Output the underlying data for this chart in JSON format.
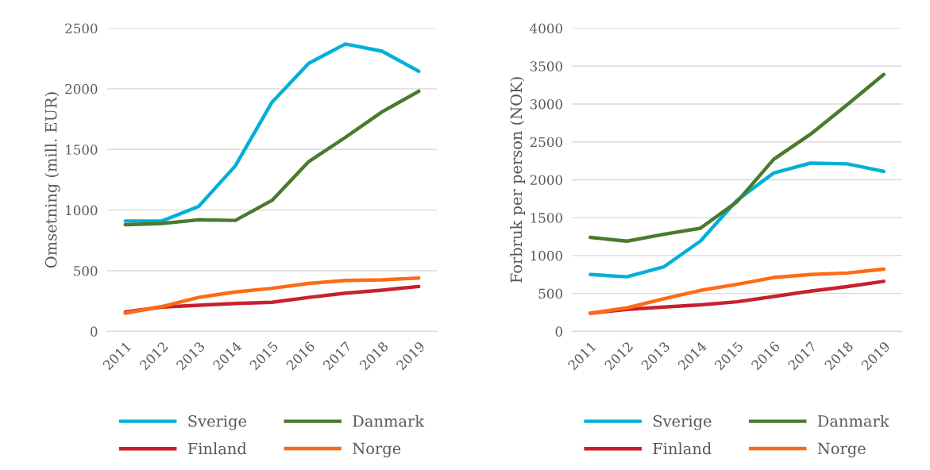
{
  "chart_data": [
    {
      "type": "line",
      "ylabel": "Omsetning (mill. EUR)",
      "categories": [
        "2011",
        "2012",
        "2013",
        "2014",
        "2015",
        "2016",
        "2017",
        "2018",
        "2019"
      ],
      "ylim": [
        0,
        2500
      ],
      "yticks": [
        0,
        500,
        1000,
        1500,
        2000,
        2500
      ],
      "grid": "y",
      "legend": "bottom",
      "series": [
        {
          "name": "Sverige",
          "color": "#00b0d8",
          "values": [
            910,
            910,
            1030,
            1365,
            1890,
            2210,
            2370,
            2310,
            2145
          ]
        },
        {
          "name": "Danmark",
          "color": "#4a7a2e",
          "values": [
            880,
            890,
            920,
            915,
            1080,
            1400,
            1600,
            1810,
            1980
          ]
        },
        {
          "name": "Finland",
          "color": "#c8202e",
          "values": [
            160,
            200,
            215,
            230,
            240,
            280,
            315,
            340,
            370
          ]
        },
        {
          "name": "Norge",
          "color": "#ff6a13",
          "values": [
            150,
            205,
            280,
            325,
            355,
            395,
            420,
            425,
            440
          ]
        }
      ]
    },
    {
      "type": "line",
      "ylabel": "Forbruk per person (NOK)",
      "categories": [
        "2011",
        "2012",
        "2013",
        "2014",
        "2015",
        "2016",
        "2017",
        "2018",
        "2019"
      ],
      "ylim": [
        0,
        4000
      ],
      "yticks": [
        0,
        500,
        1000,
        1500,
        2000,
        2500,
        3000,
        3500,
        4000
      ],
      "grid": "y",
      "legend": "bottom",
      "series": [
        {
          "name": "Sverige",
          "color": "#00b0d8",
          "values": [
            750,
            720,
            850,
            1190,
            1730,
            2090,
            2220,
            2210,
            2110
          ]
        },
        {
          "name": "Danmark",
          "color": "#4a7a2e",
          "values": [
            1240,
            1190,
            1280,
            1360,
            1710,
            2270,
            2600,
            2990,
            3390
          ]
        },
        {
          "name": "Finland",
          "color": "#c8202e",
          "values": [
            240,
            290,
            320,
            350,
            390,
            460,
            530,
            590,
            660
          ]
        },
        {
          "name": "Norge",
          "color": "#ff6a13",
          "values": [
            240,
            310,
            430,
            540,
            620,
            710,
            750,
            770,
            820
          ]
        }
      ]
    }
  ]
}
